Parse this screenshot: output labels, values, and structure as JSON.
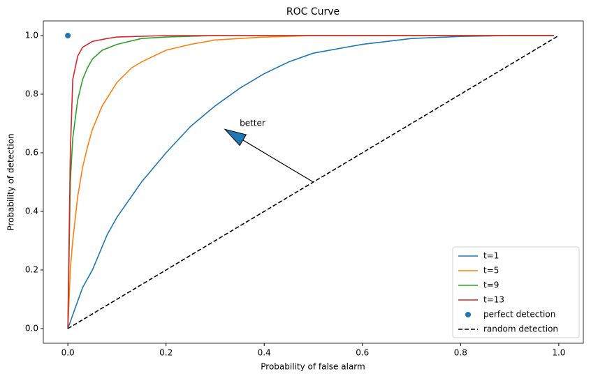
{
  "chart_data": {
    "type": "line",
    "title": "ROC Curve",
    "xlabel": "Probability of false alarm",
    "ylabel": "Probability of detection",
    "xlim": [
      -0.05,
      1.05
    ],
    "ylim": [
      -0.05,
      1.05
    ],
    "xticks": [
      {
        "value": 0,
        "label": "0.0"
      },
      {
        "value": 0.2,
        "label": "0.2"
      },
      {
        "value": 0.4,
        "label": "0.4"
      },
      {
        "value": 0.6,
        "label": "0.6"
      },
      {
        "value": 0.8,
        "label": "0.8"
      },
      {
        "value": 1,
        "label": "1.0"
      }
    ],
    "yticks": [
      {
        "value": 0,
        "label": "0.0"
      },
      {
        "value": 0.2,
        "label": "0.2"
      },
      {
        "value": 0.4,
        "label": "0.4"
      },
      {
        "value": 0.6,
        "label": "0.6"
      },
      {
        "value": 0.8,
        "label": "0.8"
      },
      {
        "value": 1,
        "label": "1.0"
      }
    ],
    "legend": "lower right",
    "series": [
      {
        "name": "t=1",
        "color": "#1f77b4",
        "style": "solid",
        "x": [
          0,
          0.03,
          0.05,
          0.08,
          0.1,
          0.15,
          0.2,
          0.25,
          0.3,
          0.35,
          0.4,
          0.45,
          0.5,
          0.6,
          0.7,
          0.8,
          0.9,
          0.99
        ],
        "values": [
          0,
          0.14,
          0.2,
          0.32,
          0.38,
          0.5,
          0.6,
          0.69,
          0.76,
          0.82,
          0.87,
          0.91,
          0.94,
          0.97,
          0.99,
          0.997,
          1,
          1
        ]
      },
      {
        "name": "t=5",
        "color": "#ff7f0e",
        "style": "solid",
        "x": [
          0,
          0.005,
          0.01,
          0.02,
          0.03,
          0.04,
          0.05,
          0.07,
          0.1,
          0.13,
          0.15,
          0.2,
          0.25,
          0.3,
          0.4,
          0.5,
          0.99
        ],
        "values": [
          0,
          0.2,
          0.3,
          0.45,
          0.55,
          0.62,
          0.68,
          0.76,
          0.84,
          0.89,
          0.91,
          0.95,
          0.97,
          0.985,
          0.995,
          1,
          1
        ]
      },
      {
        "name": "t=9",
        "color": "#2ca02c",
        "style": "solid",
        "x": [
          0,
          0.005,
          0.01,
          0.02,
          0.03,
          0.04,
          0.05,
          0.07,
          0.1,
          0.15,
          0.2,
          0.3,
          0.99
        ],
        "values": [
          0,
          0.5,
          0.65,
          0.78,
          0.85,
          0.89,
          0.92,
          0.95,
          0.97,
          0.99,
          0.995,
          1,
          1
        ]
      },
      {
        "name": "t=13",
        "color": "#d62728",
        "style": "solid",
        "x": [
          0,
          0.005,
          0.01,
          0.02,
          0.03,
          0.05,
          0.08,
          0.1,
          0.2,
          0.99
        ],
        "values": [
          0,
          0.6,
          0.85,
          0.93,
          0.96,
          0.98,
          0.99,
          0.995,
          1,
          1
        ]
      },
      {
        "name": "perfect detection",
        "color": "#1f77b4",
        "style": "marker",
        "x": [
          0
        ],
        "values": [
          1
        ]
      },
      {
        "name": "random detection",
        "color": "#000000",
        "style": "dashed",
        "x": [
          0,
          1
        ],
        "values": [
          0,
          1
        ]
      }
    ],
    "annotations": [
      {
        "text": "better",
        "x": 0.35,
        "y": 0.7,
        "arrow_from": [
          0.5,
          0.5
        ],
        "arrow_to": [
          0.32,
          0.68
        ]
      }
    ]
  }
}
